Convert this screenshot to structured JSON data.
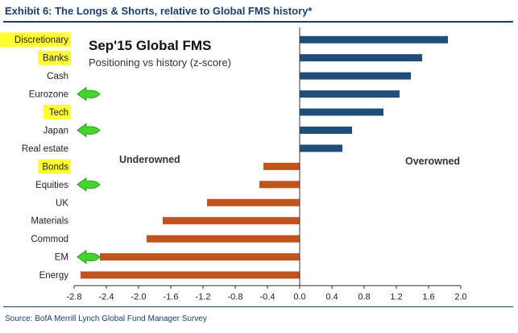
{
  "header": {
    "title": "Exhibit 6: The Longs & Shorts, relative to Global FMS history*",
    "source": "Source: BofA Merrill Lynch Global Fund Manager Survey"
  },
  "colors": {
    "positive": "#1f4e79",
    "negative": "#c0541c",
    "highlight": "#ffff33",
    "arrow": "#44d62c"
  },
  "chart_data": {
    "type": "bar",
    "orientation": "horizontal",
    "title": "Sep'15 Global FMS",
    "subtitle": "Positioning vs history (z-score)",
    "categories": [
      "Discretionary",
      "Banks",
      "Cash",
      "Eurozone",
      "Tech",
      "Japan",
      "Real estate",
      "Bonds",
      "Equities",
      "UK",
      "Materials",
      "Commod",
      "EM",
      "Energy"
    ],
    "values": [
      1.84,
      1.52,
      1.38,
      1.24,
      1.04,
      0.65,
      0.53,
      -0.45,
      -0.5,
      -1.15,
      -1.7,
      -1.9,
      -2.48,
      -2.72
    ],
    "highlighted": [
      "Discretionary",
      "Banks",
      "Tech",
      "Bonds"
    ],
    "arrowed": [
      "Eurozone",
      "Japan",
      "Equities",
      "EM"
    ],
    "xlim": [
      -2.8,
      2.0
    ],
    "xticks": [
      "-2.8",
      "-2.4",
      "-2.0",
      "-1.6",
      "-1.2",
      "-0.8",
      "-0.4",
      "0.0",
      "0.4",
      "0.8",
      "1.2",
      "1.6",
      "2.0"
    ],
    "annotations": {
      "negative": "Underowned",
      "positive": "Overowned"
    }
  }
}
